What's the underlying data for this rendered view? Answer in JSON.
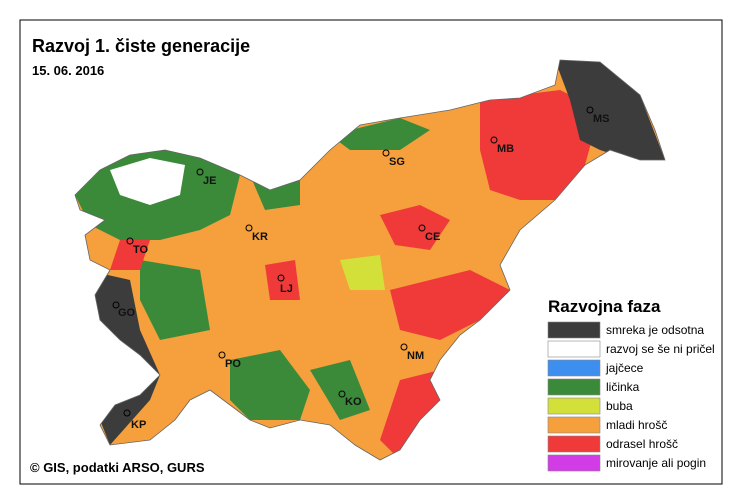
{
  "header": {
    "title": "Razvoj 1. čiste generacije",
    "date": "15. 06. 2016"
  },
  "cities": [
    "MS",
    "MB",
    "SG",
    "JE",
    "KR",
    "CE",
    "TO",
    "LJ",
    "GO",
    "NM",
    "PO",
    "KO",
    "KP"
  ],
  "legend": {
    "title": "Razvojna faza",
    "items": [
      {
        "label": "smreka je odsotna",
        "color": "#3c3c3c"
      },
      {
        "label": "razvoj se še ni pričel",
        "color": "#ffffff"
      },
      {
        "label": "jajčece",
        "color": "#3d8fef"
      },
      {
        "label": "ličinka",
        "color": "#3a8a3a"
      },
      {
        "label": "buba",
        "color": "#d4e03a"
      },
      {
        "label": "mladi hrošč",
        "color": "#f5a03c"
      },
      {
        "label": "odrasel hrošč",
        "color": "#f03a3a"
      },
      {
        "label": "mirovanje ali pogin",
        "color": "#d23ce6"
      }
    ]
  },
  "footer": {
    "credit": "© GIS, podatki ARSO, GURS"
  }
}
